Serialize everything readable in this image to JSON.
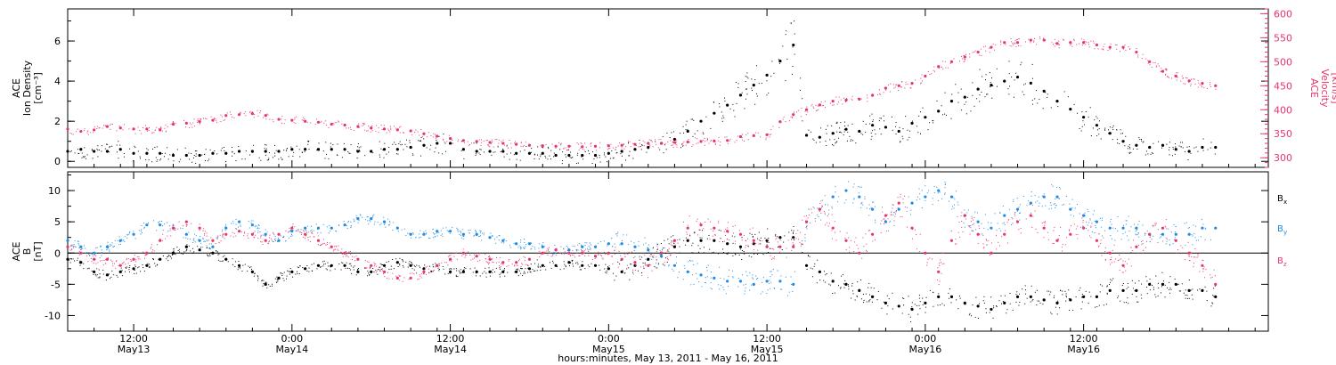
{
  "chart_data": [
    {
      "type": "scatter",
      "title": "",
      "ylabel_left": [
        "ACE",
        "Ion Density",
        "[cm⁻³]"
      ],
      "ylabel_right": [
        "ACE",
        "Velocity",
        "[km/s]"
      ],
      "ylim_left": [
        -0.3,
        7.6
      ],
      "yticks_left": [
        0,
        2,
        4,
        6
      ],
      "ylim_right": [
        280,
        610
      ],
      "yticks_right": [
        300,
        350,
        400,
        450,
        500,
        550,
        600
      ],
      "right_axis_color": "#e8366a",
      "series": [
        {
          "name": "",
          "axis": "left",
          "color": "#000000",
          "x_hours": [
            0,
            1,
            2,
            3,
            4,
            5,
            6,
            7,
            8,
            9,
            10,
            11,
            12,
            13,
            14,
            15,
            16,
            17,
            18,
            19,
            20,
            21,
            22,
            23,
            24,
            25,
            26,
            27,
            28,
            29,
            30,
            31,
            32,
            33,
            34,
            35,
            36,
            37,
            38,
            39,
            40,
            41,
            42,
            43,
            44,
            45,
            46,
            47,
            48,
            49,
            50,
            51,
            52,
            53,
            54,
            55,
            56,
            57,
            58,
            59,
            60,
            61,
            62,
            63,
            64,
            65,
            66,
            67,
            68,
            69,
            70,
            71,
            72,
            73,
            74,
            75,
            76,
            77,
            78,
            79,
            80,
            81,
            82,
            83,
            84,
            85,
            86,
            87
          ],
          "values": [
            0.5,
            0.6,
            0.5,
            0.5,
            0.6,
            0.4,
            0.4,
            0.4,
            0.3,
            0.3,
            0.3,
            0.4,
            0.4,
            0.5,
            0.5,
            0.5,
            0.5,
            0.6,
            0.6,
            0.6,
            0.6,
            0.6,
            0.5,
            0.5,
            0.6,
            0.6,
            0.7,
            0.8,
            0.9,
            0.9,
            0.6,
            0.5,
            0.5,
            0.5,
            0.4,
            0.4,
            0.4,
            0.3,
            0.3,
            0.3,
            0.3,
            0.4,
            0.5,
            0.6,
            0.7,
            0.9,
            1.1,
            1.5,
            2.0,
            2.4,
            2.8,
            3.3,
            3.8,
            4.3,
            5.0,
            5.8,
            1.3,
            1.2,
            1.4,
            1.6,
            1.5,
            1.8,
            1.7,
            1.5,
            1.9,
            2.2,
            2.5,
            3.0,
            3.2,
            3.6,
            3.8,
            4.0,
            4.2,
            3.9,
            3.5,
            3.0,
            2.6,
            2.2,
            1.8,
            1.4,
            1.0,
            0.8,
            0.7,
            0.8,
            0.6,
            0.5,
            0.7,
            0.7
          ]
        },
        {
          "name": "",
          "axis": "right",
          "color": "#e8366a",
          "x_hours": [
            0,
            1,
            2,
            3,
            4,
            5,
            6,
            7,
            8,
            9,
            10,
            11,
            12,
            13,
            14,
            15,
            16,
            17,
            18,
            19,
            20,
            21,
            22,
            23,
            24,
            25,
            26,
            27,
            28,
            29,
            30,
            31,
            32,
            33,
            34,
            35,
            36,
            37,
            38,
            39,
            40,
            41,
            42,
            43,
            44,
            45,
            46,
            47,
            48,
            49,
            50,
            51,
            52,
            53,
            54,
            55,
            56,
            57,
            58,
            59,
            60,
            61,
            62,
            63,
            64,
            65,
            66,
            67,
            68,
            69,
            70,
            71,
            72,
            73,
            74,
            75,
            76,
            77,
            78,
            79,
            80,
            81,
            82,
            83,
            84,
            85,
            86,
            87
          ],
          "values": [
            360,
            355,
            358,
            365,
            362,
            360,
            360,
            358,
            370,
            372,
            375,
            378,
            388,
            390,
            392,
            388,
            380,
            378,
            376,
            374,
            370,
            368,
            365,
            362,
            360,
            358,
            356,
            350,
            345,
            340,
            336,
            334,
            332,
            330,
            328,
            326,
            325,
            324,
            324,
            323,
            324,
            325,
            326,
            328,
            330,
            330,
            332,
            333,
            334,
            335,
            336,
            344,
            346,
            348,
            375,
            390,
            400,
            410,
            418,
            420,
            422,
            430,
            445,
            450,
            455,
            470,
            490,
            500,
            510,
            520,
            530,
            540,
            540,
            545,
            545,
            538,
            540,
            540,
            535,
            530,
            530,
            520,
            500,
            480,
            470,
            460,
            455,
            450
          ]
        }
      ]
    },
    {
      "type": "scatter",
      "title": "",
      "ylabel_left": [
        "ACE",
        "B",
        "[nT]"
      ],
      "ylim": [
        -12.5,
        13
      ],
      "yticks": [
        -10,
        -5,
        0,
        5,
        10
      ],
      "zero_line": true,
      "legend_placement": "right",
      "legend": [
        {
          "label": "B",
          "sub": "x",
          "color": "#000000"
        },
        {
          "label": "B",
          "sub": "y",
          "color": "#1e8be6"
        },
        {
          "label": "B",
          "sub": "z",
          "color": "#e8366a"
        }
      ],
      "series": [
        {
          "name": "Bx",
          "color": "#000000",
          "x_hours": [
            0,
            1,
            2,
            3,
            4,
            5,
            6,
            7,
            8,
            9,
            10,
            11,
            12,
            13,
            14,
            15,
            16,
            17,
            18,
            19,
            20,
            21,
            22,
            23,
            24,
            25,
            26,
            27,
            28,
            29,
            30,
            31,
            32,
            33,
            34,
            35,
            36,
            37,
            38,
            39,
            40,
            41,
            42,
            43,
            44,
            45,
            46,
            47,
            48,
            49,
            50,
            51,
            52,
            53,
            54,
            55,
            56,
            57,
            58,
            59,
            60,
            61,
            62,
            63,
            64,
            65,
            66,
            67,
            68,
            69,
            70,
            71,
            72,
            73,
            74,
            75,
            76,
            77,
            78,
            79,
            80,
            81,
            82,
            83,
            84,
            85,
            86,
            87
          ],
          "values": [
            -1,
            -1.5,
            -3,
            -3.5,
            -3,
            -2.5,
            -2,
            -1,
            0,
            1,
            0.5,
            0,
            -1,
            -2,
            -3,
            -5,
            -4,
            -3,
            -2.5,
            -2,
            -2,
            -2,
            -3,
            -3,
            -2,
            -1.5,
            -2,
            -2.5,
            -2,
            -3,
            -3,
            -3,
            -3,
            -3,
            -3,
            -2.5,
            -2,
            -2,
            -1.5,
            -2,
            -2,
            -2.5,
            -3,
            -2,
            -1,
            0,
            1,
            2,
            2,
            2,
            1.5,
            1,
            1.5,
            2,
            2.5,
            2.5,
            -2,
            -3,
            -4.5,
            -5,
            -6,
            -7,
            -8,
            -8.5,
            -9,
            -8,
            -7,
            -7,
            -8,
            -8.5,
            -9,
            -8,
            -7,
            -7,
            -7.5,
            -8,
            -7.5,
            -7,
            -7,
            -6,
            -6,
            -6,
            -5,
            -5,
            -5,
            -6,
            -6,
            -7
          ]
        },
        {
          "name": "By",
          "color": "#1e8be6",
          "x_hours": [
            0,
            1,
            2,
            3,
            4,
            5,
            6,
            7,
            8,
            9,
            10,
            11,
            12,
            13,
            14,
            15,
            16,
            17,
            18,
            19,
            20,
            21,
            22,
            23,
            24,
            25,
            26,
            27,
            28,
            29,
            30,
            31,
            32,
            33,
            34,
            35,
            36,
            37,
            38,
            39,
            40,
            41,
            42,
            43,
            44,
            45,
            46,
            47,
            48,
            49,
            50,
            51,
            52,
            53,
            54,
            55,
            56,
            57,
            58,
            59,
            60,
            61,
            62,
            63,
            64,
            65,
            66,
            67,
            68,
            69,
            70,
            71,
            72,
            73,
            74,
            75,
            76,
            77,
            78,
            79,
            80,
            81,
            82,
            83,
            84,
            85,
            86,
            87
          ],
          "values": [
            2,
            1,
            0,
            1,
            2,
            3,
            4.5,
            4.5,
            4,
            3,
            2,
            1,
            4,
            5,
            4.5,
            3,
            2,
            3.5,
            4,
            4,
            4,
            4.5,
            5.5,
            5.5,
            5,
            4,
            3,
            3,
            3.5,
            3.5,
            3,
            3,
            2.5,
            2,
            1.5,
            1.5,
            1,
            0.5,
            0.5,
            1,
            1,
            1.5,
            1.5,
            1,
            0.5,
            -0.5,
            -2,
            -3,
            -3.5,
            -4,
            -4.5,
            -4.5,
            -5,
            -4.5,
            -4.5,
            -5,
            5,
            7,
            9,
            10,
            9,
            7,
            5,
            7,
            8,
            9,
            10,
            9,
            6,
            5,
            4,
            6,
            7,
            8,
            9,
            9,
            7,
            6,
            5,
            4,
            4,
            4,
            3,
            3,
            3,
            3,
            4,
            4
          ]
        },
        {
          "name": "Bz",
          "color": "#e8366a",
          "x_hours": [
            0,
            1,
            2,
            3,
            4,
            5,
            6,
            7,
            8,
            9,
            10,
            11,
            12,
            13,
            14,
            15,
            16,
            17,
            18,
            19,
            20,
            21,
            22,
            23,
            24,
            25,
            26,
            27,
            28,
            29,
            30,
            31,
            32,
            33,
            34,
            35,
            36,
            37,
            38,
            39,
            40,
            41,
            42,
            43,
            44,
            45,
            46,
            47,
            48,
            49,
            50,
            51,
            52,
            53,
            54,
            55,
            56,
            57,
            58,
            59,
            60,
            61,
            62,
            63,
            64,
            65,
            66,
            67,
            68,
            69,
            70,
            71,
            72,
            73,
            74,
            75,
            76,
            77,
            78,
            79,
            80,
            81,
            82,
            83,
            84,
            85,
            86,
            87
          ],
          "values": [
            1,
            0,
            -1,
            -1,
            -2,
            -1,
            0,
            2,
            4,
            5,
            4,
            2,
            3,
            3.5,
            3,
            2,
            3,
            4,
            3,
            2,
            1,
            0,
            -1,
            -2,
            -3,
            -4,
            -4,
            -3,
            -2,
            -1,
            0,
            -0.5,
            -1,
            -1.5,
            -1.5,
            -1,
            0,
            0.5,
            0,
            0,
            -0.5,
            0,
            -1,
            -1.5,
            -2,
            0,
            2,
            4,
            4.5,
            4,
            3.5,
            3,
            2,
            1,
            1,
            1,
            5,
            7,
            4,
            2,
            0,
            3,
            6,
            8,
            4,
            0,
            -3,
            2,
            6,
            3,
            0,
            3,
            5,
            6,
            4,
            2,
            3,
            4,
            2,
            0,
            -2,
            1,
            3,
            4,
            2,
            0,
            -2,
            -5
          ]
        }
      ]
    }
  ],
  "x_axis": {
    "start": "May 13, 2011 07:00",
    "xlim_hours": [
      0,
      91
    ],
    "ticks": [
      {
        "time": "12:00",
        "date": "May13",
        "hours": 5
      },
      {
        "time": "0:00",
        "date": "May14",
        "hours": 17
      },
      {
        "time": "12:00",
        "date": "May14",
        "hours": 29
      },
      {
        "time": "0:00",
        "date": "May15",
        "hours": 41
      },
      {
        "time": "12:00",
        "date": "May15",
        "hours": 53
      },
      {
        "time": "0:00",
        "date": "May16",
        "hours": 65
      },
      {
        "time": "12:00",
        "date": "May16",
        "hours": 77
      }
    ],
    "xlabel": "hours:minutes, May 13, 2011 - May 16, 2011"
  }
}
